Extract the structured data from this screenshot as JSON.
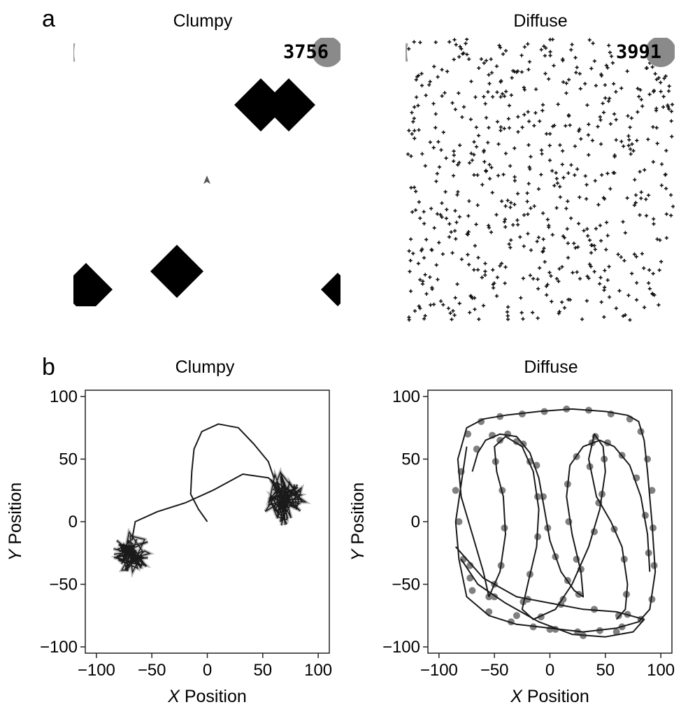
{
  "panel_labels": {
    "a": "a",
    "b": "b"
  },
  "screens": {
    "clumpy": {
      "title": "Clumpy",
      "score": "3756",
      "colors": {
        "resource": "#000000",
        "score_badge": "#8a8a8a",
        "background": "#ffffff"
      }
    },
    "diffuse": {
      "title": "Diffuse",
      "score": "3991",
      "colors": {
        "resource": "#111111",
        "score_badge": "#8a8a8a",
        "background": "#ffffff"
      }
    }
  },
  "chart_data": [
    {
      "type": "line",
      "title": "Clumpy",
      "xlabel_italic": "X",
      "xlabel_rest": " Position",
      "ylabel_italic": "Y",
      "ylabel_rest": " Position",
      "xlim": [
        -110,
        110
      ],
      "ylim": [
        -105,
        105
      ],
      "xticks": [
        -100,
        -50,
        0,
        50,
        100
      ],
      "yticks": [
        -100,
        -50,
        0,
        50,
        100
      ],
      "xtick_labels": [
        "−100",
        "−50",
        "0",
        "50",
        "100"
      ],
      "ytick_labels": [
        "−100",
        "−50",
        "0",
        "50",
        "100"
      ],
      "series": [
        {
          "style": "path",
          "color": "#1a1a1a",
          "x": [
            0,
            -8,
            -15,
            -14,
            -12,
            -5,
            10,
            28,
            42,
            55,
            60
          ],
          "y": [
            0,
            10,
            22,
            40,
            58,
            72,
            78,
            75,
            62,
            48,
            35
          ]
        },
        {
          "style": "path",
          "color": "#1a1a1a",
          "x": [
            -68,
            -65,
            -45,
            -20,
            5,
            32,
            55,
            65
          ],
          "y": [
            -15,
            0,
            8,
            15,
            25,
            38,
            35,
            28
          ]
        }
      ],
      "clusters": [
        {
          "cx": 70,
          "cy": 18,
          "r": 22,
          "color": "#1a1a1a"
        },
        {
          "cx": -68,
          "cy": -25,
          "r": 17,
          "color": "#1a1a1a"
        }
      ],
      "point_color": "#888888"
    },
    {
      "type": "line",
      "title": "Diffuse",
      "xlabel_italic": "X",
      "xlabel_rest": " Position",
      "ylabel_italic": "Y",
      "ylabel_rest": " Position",
      "xlim": [
        -110,
        110
      ],
      "ylim": [
        -105,
        105
      ],
      "xticks": [
        -100,
        -50,
        0,
        50,
        100
      ],
      "yticks": [
        -100,
        -50,
        0,
        50,
        100
      ],
      "xtick_labels": [
        "−100",
        "−50",
        "0",
        "50",
        "100"
      ],
      "ytick_labels": [
        "−100",
        "−50",
        "0",
        "50",
        "100"
      ],
      "series": [
        {
          "style": "path",
          "color": "#1a1a1a",
          "x": [
            -75,
            -80,
            -85,
            -82,
            -75,
            -55,
            -30,
            0,
            30,
            60,
            80,
            90,
            95,
            92,
            88,
            85,
            80,
            70,
            50,
            20,
            -10,
            -40,
            -60,
            -75,
            -83,
            -80,
            -70,
            -60,
            -55
          ],
          "y": [
            60,
            30,
            0,
            -30,
            -60,
            -75,
            -82,
            -85,
            -88,
            -85,
            -80,
            -70,
            -40,
            0,
            40,
            65,
            80,
            85,
            88,
            90,
            88,
            85,
            82,
            75,
            50,
            20,
            -10,
            -40,
            -60
          ]
        },
        {
          "style": "path",
          "color": "#1a1a1a",
          "x": [
            -55,
            -45,
            -40,
            -42,
            -48,
            -50,
            -40,
            -25,
            -15,
            -10,
            -12,
            -20,
            -25,
            -15,
            5,
            20,
            35,
            45,
            50,
            48,
            40,
            35,
            42,
            55,
            65,
            70,
            68,
            60
          ],
          "y": [
            -60,
            -40,
            -10,
            20,
            40,
            60,
            68,
            60,
            40,
            10,
            -20,
            -50,
            -70,
            -78,
            -70,
            -50,
            -20,
            10,
            40,
            60,
            70,
            50,
            20,
            0,
            -20,
            -50,
            -70,
            -78
          ]
        },
        {
          "style": "path",
          "color": "#1a1a1a",
          "x": [
            -70,
            -65,
            -58,
            -45,
            -30,
            -18,
            -10,
            -5,
            0,
            10,
            22,
            30,
            28,
            20,
            15,
            18,
            30,
            45,
            58,
            72,
            82,
            88,
            90
          ],
          "y": [
            40,
            55,
            65,
            70,
            68,
            55,
            35,
            10,
            -15,
            -40,
            -55,
            -60,
            -40,
            -10,
            20,
            45,
            60,
            65,
            60,
            45,
            20,
            -10,
            -40
          ]
        },
        {
          "style": "path",
          "color": "#1a1a1a",
          "x": [
            -85,
            -60,
            -30,
            0,
            30,
            60,
            85,
            75,
            50,
            20,
            -10,
            -40,
            -65,
            -80
          ],
          "y": [
            -20,
            -45,
            -60,
            -65,
            -70,
            -72,
            -78,
            -88,
            -92,
            -90,
            -80,
            -65,
            -50,
            -30
          ]
        }
      ],
      "points": [
        [
          -80,
          40
        ],
        [
          -85,
          25
        ],
        [
          -82,
          0
        ],
        [
          -78,
          -30
        ],
        [
          -70,
          -55
        ],
        [
          -55,
          -72
        ],
        [
          -35,
          -80
        ],
        [
          -15,
          -84
        ],
        [
          5,
          -86
        ],
        [
          25,
          -88
        ],
        [
          45,
          -87
        ],
        [
          65,
          -84
        ],
        [
          82,
          -78
        ],
        [
          92,
          -62
        ],
        [
          94,
          -35
        ],
        [
          93,
          -5
        ],
        [
          92,
          25
        ],
        [
          88,
          50
        ],
        [
          82,
          72
        ],
        [
          72,
          82
        ],
        [
          55,
          86
        ],
        [
          35,
          89
        ],
        [
          15,
          90
        ],
        [
          -5,
          88
        ],
        [
          -25,
          86
        ],
        [
          -45,
          84
        ],
        [
          -62,
          80
        ],
        [
          -74,
          70
        ],
        [
          -50,
          -60
        ],
        [
          -44,
          -35
        ],
        [
          -41,
          -5
        ],
        [
          -43,
          25
        ],
        [
          -49,
          48
        ],
        [
          -45,
          65
        ],
        [
          -30,
          64
        ],
        [
          -18,
          48
        ],
        [
          -11,
          20
        ],
        [
          -11,
          -12
        ],
        [
          -18,
          -42
        ],
        [
          -24,
          -64
        ],
        [
          -8,
          -76
        ],
        [
          12,
          -62
        ],
        [
          28,
          -38
        ],
        [
          40,
          -8
        ],
        [
          47,
          22
        ],
        [
          49,
          50
        ],
        [
          41,
          68
        ],
        [
          36,
          44
        ],
        [
          44,
          15
        ],
        [
          58,
          -6
        ],
        [
          67,
          -30
        ],
        [
          69,
          -58
        ],
        [
          62,
          -75
        ],
        [
          -66,
          58
        ],
        [
          -52,
          69
        ],
        [
          -38,
          70
        ],
        [
          -24,
          62
        ],
        [
          -12,
          45
        ],
        [
          -6,
          20
        ],
        [
          -2,
          -5
        ],
        [
          5,
          -28
        ],
        [
          16,
          -47
        ],
        [
          26,
          -58
        ],
        [
          24,
          -30
        ],
        [
          17,
          0
        ],
        [
          16,
          30
        ],
        [
          24,
          52
        ],
        [
          38,
          63
        ],
        [
          52,
          63
        ],
        [
          65,
          53
        ],
        [
          78,
          35
        ],
        [
          86,
          5
        ],
        [
          89,
          -25
        ],
        [
          -72,
          -35
        ],
        [
          -50,
          -50
        ],
        [
          -20,
          -62
        ],
        [
          10,
          -66
        ],
        [
          40,
          -70
        ],
        [
          70,
          -74
        ],
        [
          60,
          -88
        ],
        [
          30,
          -91
        ],
        [
          0,
          -86
        ],
        [
          -30,
          -75
        ],
        [
          -55,
          -60
        ],
        [
          -72,
          -45
        ]
      ],
      "point_color": "#808080"
    }
  ]
}
